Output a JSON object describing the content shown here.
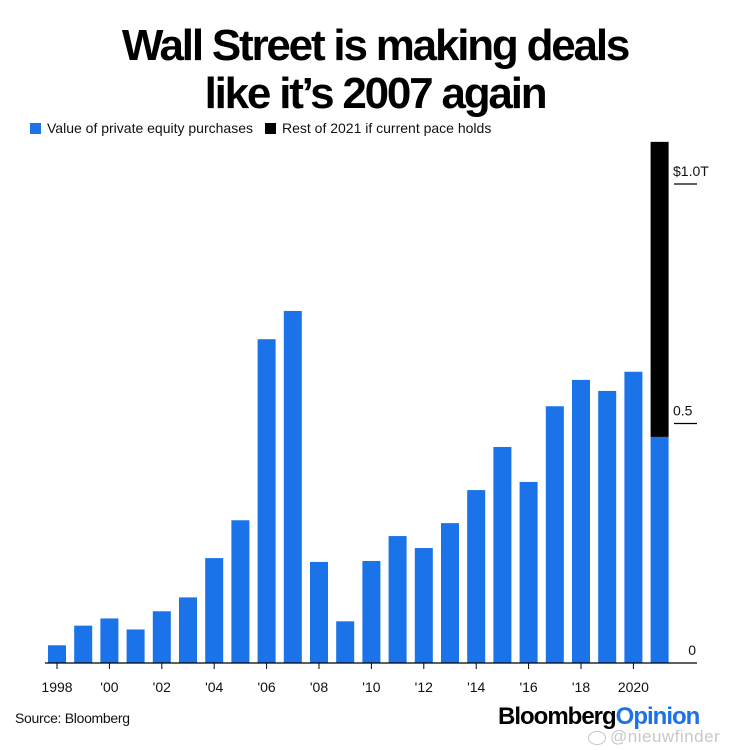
{
  "title_line1": "Wall Street is making deals",
  "title_line2": "like it’s 2007 again",
  "legend": [
    {
      "label": "Value of private equity purchases",
      "color": "#1a73e8"
    },
    {
      "label": "Rest of 2021 if current pace holds",
      "color": "#000000"
    }
  ],
  "source": "Source: Bloomberg",
  "brand": {
    "part1": "Bloomberg",
    "part2": "Opinion"
  },
  "watermark": "@nieuwfinder",
  "chart_data": {
    "type": "bar",
    "stacked": true,
    "title": "Wall Street is making deals like it’s 2007 again",
    "xlabel": "",
    "ylabel": "",
    "ylim": [
      0,
      1.0
    ],
    "yticks": [
      0,
      0.5,
      1.0
    ],
    "ytick_labels": [
      "0",
      "0.5",
      "$1.0T"
    ],
    "yaxis_position": "right",
    "grid": false,
    "legend_position": "top-left",
    "categories": [
      "1998",
      "1999",
      "2000",
      "2001",
      "2002",
      "2003",
      "2004",
      "2005",
      "2006",
      "2007",
      "2008",
      "2009",
      "2010",
      "2011",
      "2012",
      "2013",
      "2014",
      "2015",
      "2016",
      "2017",
      "2018",
      "2019",
      "2020",
      "2021"
    ],
    "xtick_labels": {
      "1998": "1998",
      "2000": "'00",
      "2002": "'02",
      "2004": "'04",
      "2006": "'06",
      "2008": "'08",
      "2010": "'10",
      "2012": "'12",
      "2014": "'14",
      "2016": "'16",
      "2018": "'18",
      "2020": "2020"
    },
    "series": [
      {
        "name": "Value of private equity purchases",
        "color": "#1a73e8",
        "values": [
          0.037,
          0.078,
          0.093,
          0.07,
          0.108,
          0.137,
          0.219,
          0.298,
          0.676,
          0.735,
          0.211,
          0.087,
          0.213,
          0.265,
          0.24,
          0.292,
          0.361,
          0.451,
          0.378,
          0.536,
          0.591,
          0.568,
          0.608,
          0.472
        ]
      },
      {
        "name": "Rest of 2021 if current pace holds",
        "color": "#000000",
        "values": [
          0,
          0,
          0,
          0,
          0,
          0,
          0,
          0,
          0,
          0,
          0,
          0,
          0,
          0,
          0,
          0,
          0,
          0,
          0,
          0,
          0,
          0,
          0,
          0.616
        ]
      }
    ]
  }
}
